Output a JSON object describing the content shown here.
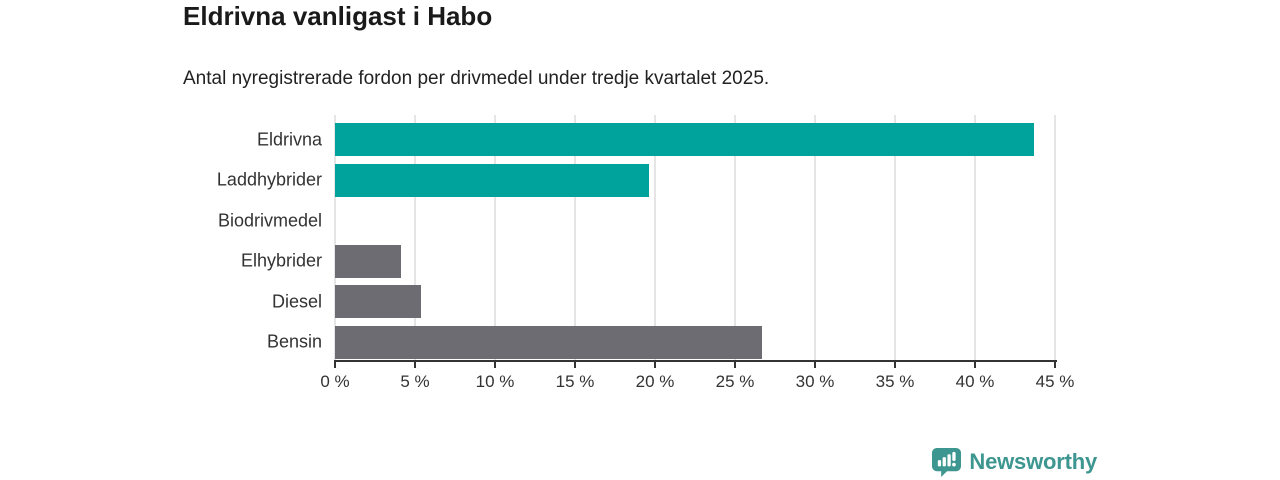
{
  "header": {
    "title": "Eldrivna vanligast i Habo",
    "subtitle": "Antal nyregistrerade fordon per drivmedel under tredje kvartalet 2025."
  },
  "chart_data": {
    "type": "bar",
    "orientation": "horizontal",
    "title": "Eldrivna vanligast i Habo",
    "subtitle": "Antal nyregistrerade fordon per drivmedel under tredje kvartalet 2025.",
    "categories": [
      "Eldrivna",
      "Laddhybrider",
      "Biodrivmedel",
      "Elhybrider",
      "Diesel",
      "Bensin"
    ],
    "values": [
      43.7,
      19.6,
      0,
      4.1,
      5.4,
      26.7
    ],
    "unit": "%",
    "xlim": [
      0,
      45
    ],
    "x_tick_values": [
      0,
      5,
      10,
      15,
      20,
      25,
      30,
      35,
      40,
      45
    ],
    "x_tick_labels": [
      "0 %",
      "5 %",
      "10 %",
      "15 %",
      "20 %",
      "25 %",
      "30 %",
      "35 %",
      "40 %",
      "45 %"
    ],
    "grid": true,
    "legend": false,
    "highlight_color": "#00a39b",
    "default_color": "#6c6c72",
    "bar_colors": [
      "#00a39b",
      "#00a39b",
      "#6c6c72",
      "#6c6c72",
      "#6c6c72",
      "#6c6c72"
    ]
  },
  "footer": {
    "logo_text": "Newsworthy",
    "logo_color": "#3d968f",
    "logo_icon": "newsworthy-chart-bubble-icon"
  }
}
